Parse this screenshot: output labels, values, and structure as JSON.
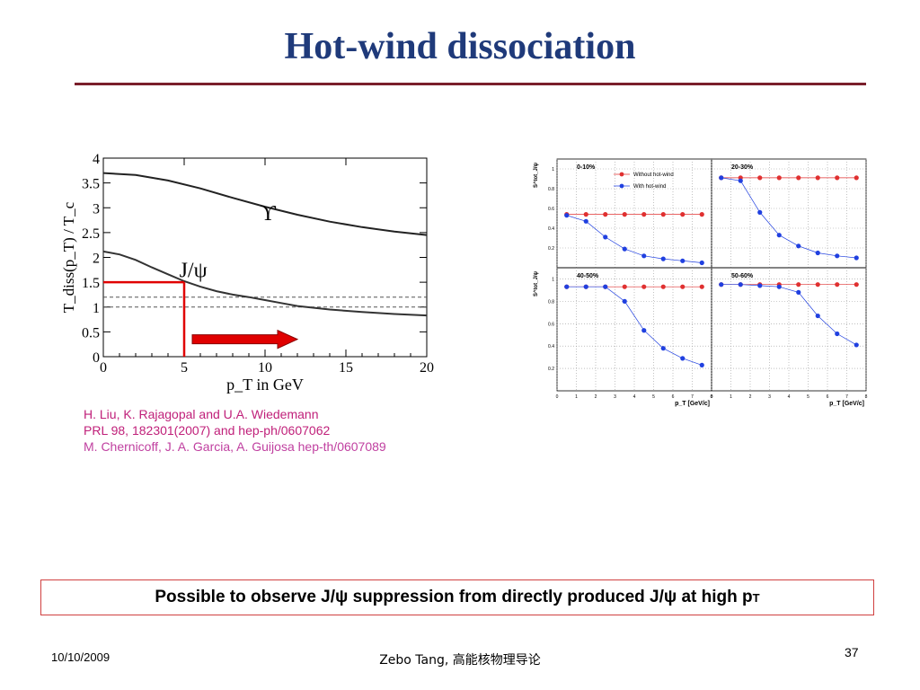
{
  "slide": {
    "title": "Hot-wind dissociation",
    "references": [
      {
        "text": "H. Liu, K. Rajagopal and U.A. Wiedemann",
        "color": "#c0207a"
      },
      {
        "text": "PRL 98, 182301(2007) and hep-ph/0607062",
        "color": "#c0207a"
      },
      {
        "text": "M. Chernicoff, J. A. Garcia, A. Guijosa hep-th/0607089",
        "color": "#c040a0"
      }
    ],
    "conclusion": {
      "main": "Possible to observe J/ψ suppression from directly produced J/ψ at high p",
      "subscript": "T"
    },
    "footer": {
      "date": "10/10/2009",
      "author": "Zebo Tang, 高能核物理导论",
      "page": "37"
    }
  },
  "chart_data": [
    {
      "type": "line",
      "xlabel": "p_T in GeV",
      "ylabel": "T_diss(p_T) / T_c",
      "xlim": [
        0,
        20
      ],
      "ylim": [
        0,
        4
      ],
      "xticks": [
        0,
        5,
        10,
        15,
        20
      ],
      "yticks": [
        0,
        0.5,
        1,
        1.5,
        2,
        2.5,
        3,
        3.5,
        4
      ],
      "reference_lines": [
        1.0,
        1.2
      ],
      "series": [
        {
          "name": "ϒ",
          "x": [
            0,
            2,
            4,
            6,
            8,
            10,
            12,
            14,
            16,
            18,
            20
          ],
          "y": [
            3.7,
            3.66,
            3.55,
            3.39,
            3.2,
            3.02,
            2.86,
            2.72,
            2.61,
            2.52,
            2.45
          ]
        },
        {
          "name": "J/ψ",
          "x": [
            0,
            1,
            2,
            3,
            4,
            5,
            6,
            7,
            8,
            9,
            10,
            11,
            12,
            14,
            16,
            18,
            20
          ],
          "y": [
            2.12,
            2.06,
            1.95,
            1.8,
            1.66,
            1.52,
            1.41,
            1.32,
            1.25,
            1.2,
            1.14,
            1.08,
            1.02,
            0.95,
            0.9,
            0.86,
            0.83
          ]
        }
      ],
      "annotations": [
        {
          "type": "marker-lines",
          "x": 5,
          "y": 1.5,
          "color": "#e00000"
        },
        {
          "type": "arrow",
          "x_from": 5.5,
          "x_to": 12,
          "y": 0.35,
          "color": "#e00000"
        }
      ]
    },
    {
      "type": "scatter",
      "title": "",
      "ylabel": "S^tot_J/ψ",
      "xlabel": "p_T [GeV/c]",
      "xlim": [
        0,
        8
      ],
      "ylim": [
        0,
        1.1
      ],
      "xticks": [
        0,
        1,
        2,
        3,
        4,
        5,
        6,
        7,
        8
      ],
      "yticks": [
        0.2,
        0.4,
        0.6,
        0.8,
        1
      ],
      "legend": [
        "Without hot-wind",
        "With hot-wind"
      ],
      "series_colors": {
        "Without hot-wind": "#e03030",
        "With hot-wind": "#2040e0"
      },
      "panels": [
        {
          "label": "0-10%",
          "x": [
            0.5,
            1.5,
            2.5,
            3.5,
            4.5,
            5.5,
            6.5,
            7.5
          ],
          "without": [
            0.54,
            0.54,
            0.54,
            0.54,
            0.54,
            0.54,
            0.54,
            0.54
          ],
          "with": [
            0.53,
            0.47,
            0.31,
            0.19,
            0.12,
            0.09,
            0.07,
            0.05
          ]
        },
        {
          "label": "20-30%",
          "x": [
            0.5,
            1.5,
            2.5,
            3.5,
            4.5,
            5.5,
            6.5,
            7.5
          ],
          "without": [
            0.91,
            0.91,
            0.91,
            0.91,
            0.91,
            0.91,
            0.91,
            0.91
          ],
          "with": [
            0.91,
            0.88,
            0.56,
            0.33,
            0.22,
            0.15,
            0.12,
            0.1
          ]
        },
        {
          "label": "40-50%",
          "x": [
            0.5,
            1.5,
            2.5,
            3.5,
            4.5,
            5.5,
            6.5,
            7.5
          ],
          "without": [
            0.93,
            0.93,
            0.93,
            0.93,
            0.93,
            0.93,
            0.93,
            0.93
          ],
          "with": [
            0.93,
            0.93,
            0.93,
            0.8,
            0.54,
            0.38,
            0.29,
            0.23
          ]
        },
        {
          "label": "50-60%",
          "x": [
            0.5,
            1.5,
            2.5,
            3.5,
            4.5,
            5.5,
            6.5,
            7.5
          ],
          "without": [
            0.95,
            0.95,
            0.95,
            0.95,
            0.95,
            0.95,
            0.95,
            0.95
          ],
          "with": [
            0.95,
            0.95,
            0.94,
            0.93,
            0.88,
            0.67,
            0.51,
            0.41
          ]
        }
      ]
    }
  ]
}
